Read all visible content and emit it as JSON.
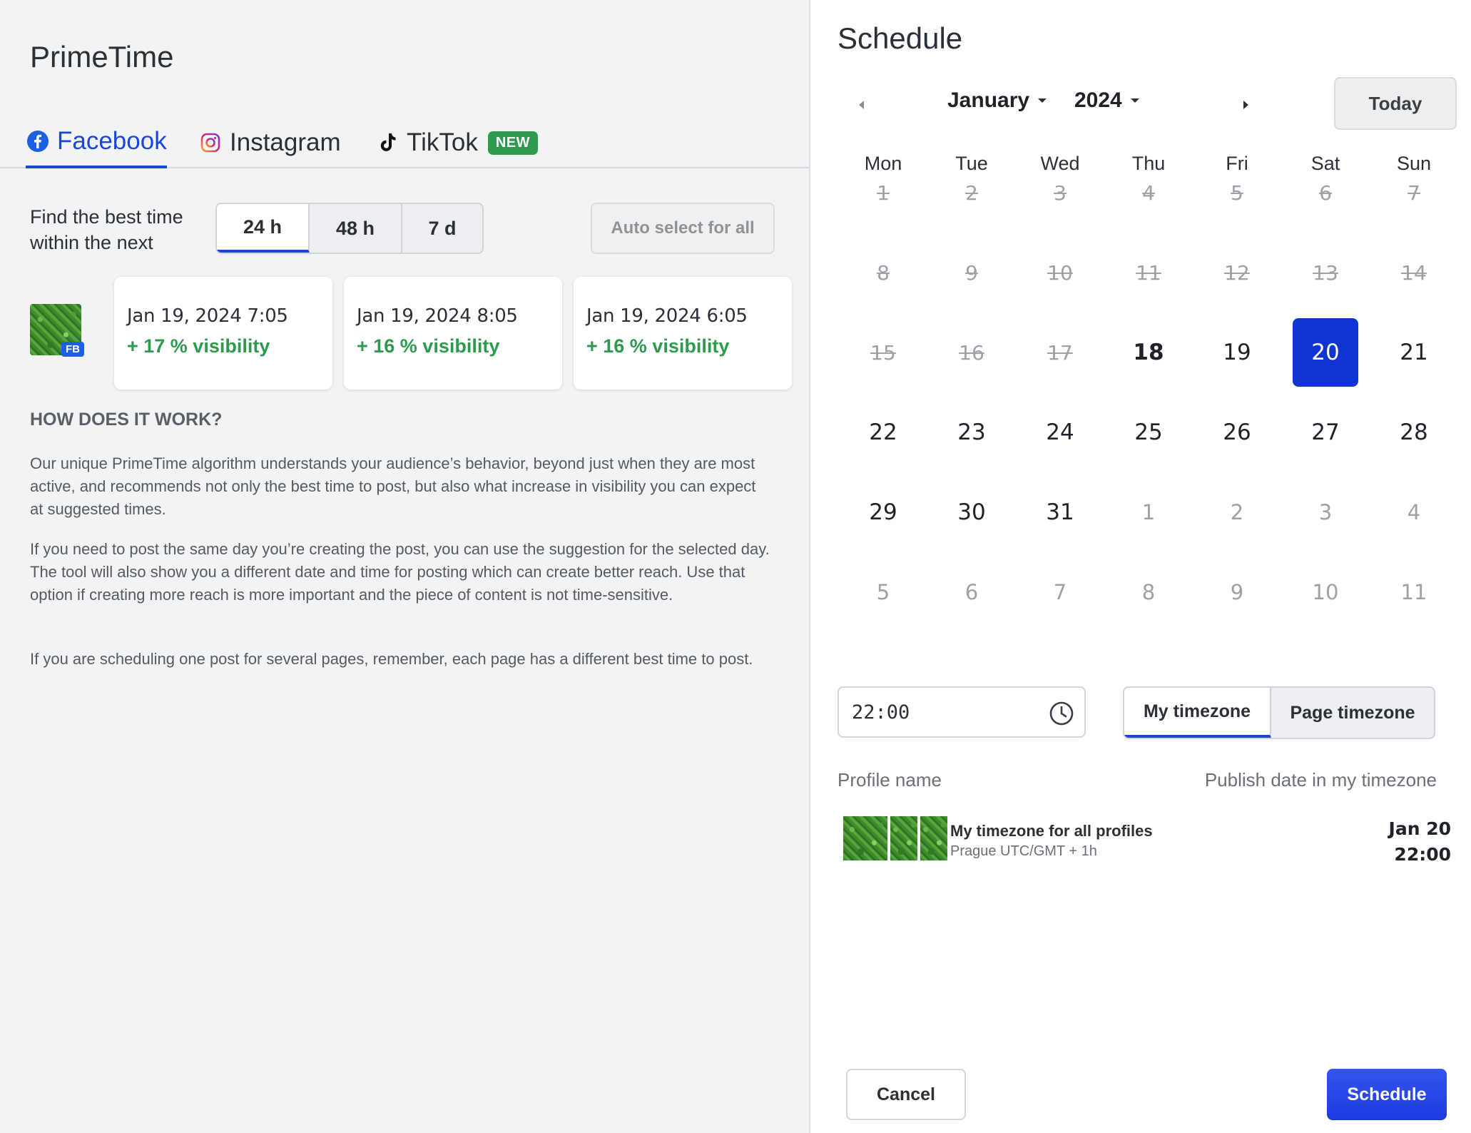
{
  "left": {
    "app_title": "PrimeTime",
    "tabs": [
      {
        "label": "Facebook",
        "icon": "facebook-icon",
        "active": true
      },
      {
        "label": "Instagram",
        "icon": "instagram-icon",
        "active": false
      },
      {
        "label": "TikTok",
        "icon": "tiktok-icon",
        "active": false,
        "badge": "NEW"
      }
    ],
    "find_label": "Find the best time within the next",
    "range_options": [
      "24 h",
      "48 h",
      "7 d"
    ],
    "range_selected": "24 h",
    "auto_select_label": "Auto select for all",
    "profile_badge": "FB",
    "suggestions": [
      {
        "date": "Jan 19, 2024 7:05",
        "visibility": "+ 17 % visibility"
      },
      {
        "date": "Jan 19, 2024 8:05",
        "visibility": "+ 16 % visibility"
      },
      {
        "date": "Jan 19, 2024 6:05",
        "visibility": "+ 16 % visibility"
      }
    ],
    "how_title": "HOW DOES IT WORK?",
    "paragraphs": [
      "Our unique PrimeTime algorithm understands your audience’s behavior, beyond just when they are most active, and recommends not only the best time to post, but also what increase in visibility you can expect at suggested times.",
      "If you need to post the same day you’re creating the post, you can use the suggestion for the selected day. The tool will also show you a different date and time for posting which can create better reach. Use that option if creating more reach is more important and the piece of content is not time-sensitive.",
      "If you are scheduling one post for several pages, remember, each page has a different best time to post."
    ]
  },
  "right": {
    "title": "Schedule",
    "month": "January",
    "year": "2024",
    "today_label": "Today",
    "weekdays": [
      "Mon",
      "Tue",
      "Wed",
      "Thu",
      "Fri",
      "Sat",
      "Sun"
    ],
    "weeks": [
      [
        {
          "d": "1",
          "s": "past"
        },
        {
          "d": "2",
          "s": "past"
        },
        {
          "d": "3",
          "s": "past"
        },
        {
          "d": "4",
          "s": "past"
        },
        {
          "d": "5",
          "s": "past"
        },
        {
          "d": "6",
          "s": "past"
        },
        {
          "d": "7",
          "s": "past"
        }
      ],
      [
        {
          "d": "8",
          "s": "past"
        },
        {
          "d": "9",
          "s": "past"
        },
        {
          "d": "10",
          "s": "past"
        },
        {
          "d": "11",
          "s": "past"
        },
        {
          "d": "12",
          "s": "past"
        },
        {
          "d": "13",
          "s": "past"
        },
        {
          "d": "14",
          "s": "past"
        }
      ],
      [
        {
          "d": "15",
          "s": "past"
        },
        {
          "d": "16",
          "s": "past"
        },
        {
          "d": "17",
          "s": "past"
        },
        {
          "d": "18",
          "s": "today"
        },
        {
          "d": "19",
          "s": "normal"
        },
        {
          "d": "20",
          "s": "selected"
        },
        {
          "d": "21",
          "s": "normal"
        }
      ],
      [
        {
          "d": "22",
          "s": "normal"
        },
        {
          "d": "23",
          "s": "normal"
        },
        {
          "d": "24",
          "s": "normal"
        },
        {
          "d": "25",
          "s": "normal"
        },
        {
          "d": "26",
          "s": "normal"
        },
        {
          "d": "27",
          "s": "normal"
        },
        {
          "d": "28",
          "s": "normal"
        }
      ],
      [
        {
          "d": "29",
          "s": "normal"
        },
        {
          "d": "30",
          "s": "normal"
        },
        {
          "d": "31",
          "s": "normal"
        },
        {
          "d": "1",
          "s": "other"
        },
        {
          "d": "2",
          "s": "other"
        },
        {
          "d": "3",
          "s": "other"
        },
        {
          "d": "4",
          "s": "other"
        }
      ],
      [
        {
          "d": "5",
          "s": "other"
        },
        {
          "d": "6",
          "s": "other"
        },
        {
          "d": "7",
          "s": "other"
        },
        {
          "d": "8",
          "s": "other"
        },
        {
          "d": "9",
          "s": "other"
        },
        {
          "d": "10",
          "s": "other"
        },
        {
          "d": "11",
          "s": "other"
        }
      ]
    ],
    "time_value": "22:00",
    "tz_options": [
      "My timezone",
      "Page timezone"
    ],
    "tz_selected": "My timezone",
    "col_profile": "Profile name",
    "col_publish": "Publish date in my timezone",
    "profile_row": {
      "name": "My timezone for all profiles",
      "sub": "Prague UTC/GMT + 1h",
      "date": "Jan 20",
      "time": "22:00"
    },
    "cancel_label": "Cancel",
    "schedule_label": "Schedule"
  },
  "colors": {
    "accent": "#1c46d8",
    "selected_day": "#1033d3",
    "positive": "#2e9a4e",
    "schedule_button": "#2a48ea"
  }
}
